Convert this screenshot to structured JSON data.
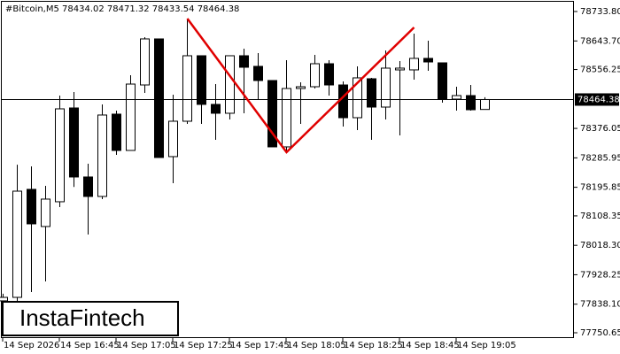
{
  "chart_data": {
    "type": "candlestick",
    "title": "#Bitcoin,M5  78434.02 78471.32 78433.54 78464.38",
    "categories": [
      "14 Sep 2026",
      null,
      null,
      null,
      "14 Sep 16:45",
      null,
      null,
      null,
      "14 Sep 17:05",
      null,
      null,
      null,
      "14 Sep 17:25",
      null,
      null,
      null,
      "14 Sep 17:45",
      null,
      null,
      null,
      "14 Sep 18:05",
      null,
      null,
      null,
      "14 Sep 18:25",
      null,
      null,
      null,
      "14 Sep 18:45",
      null,
      null,
      null,
      "14 Sep 19:05",
      null,
      null
    ],
    "open": [
      77848.3,
      77859,
      78189.5,
      78075.8,
      78151.6,
      78438.6,
      78227.4,
      78167.8,
      78419.7,
      78308.6,
      78509,
      78649.9,
      78289.7,
      78398,
      78598.4,
      78449.5,
      78422.4,
      78598.4,
      78565.9,
      78522.6,
      78319.5,
      78498.2,
      78503.6,
      78574,
      78509,
      78408.8,
      78528,
      78441.3,
      78555.1,
      78555.1,
      78590.3,
      78576.7,
      78465.7,
      78476.5,
      78434.02
    ],
    "high": [
      77870,
      78265,
      78259.9,
      78200.3,
      78476.5,
      78487.4,
      78268,
      78449.5,
      78430.5,
      78538.8,
      78655.3,
      78649.9,
      78479.2,
      78712.1,
      78598.4,
      78511.7,
      78598.4,
      78620.1,
      78606.5,
      78522.6,
      78584.9,
      78517.2,
      78601.1,
      78584.9,
      78519.9,
      78565.9,
      78530.7,
      78614.6,
      78582.2,
      78666.1,
      78644.4,
      78576.7,
      78503.6,
      78509,
      78471.32
    ],
    "low": [
      77843,
      77843,
      77875.4,
      77907.9,
      78135.3,
      78196.8,
      78051.4,
      78159.7,
      78295.1,
      78308.6,
      78484.7,
      78287,
      78208.4,
      78389.9,
      78389.9,
      78341.1,
      78403.4,
      78422.4,
      78463,
      78319.5,
      78303.2,
      78389.9,
      78498.2,
      78476.5,
      78381.8,
      78371,
      78341.1,
      78403.4,
      78354.7,
      78525.3,
      78552.4,
      78454.9,
      78430.5,
      78430.5,
      78433.54
    ],
    "close": [
      77859,
      78184,
      78083.9,
      78159.7,
      78435.9,
      78227.4,
      78167.8,
      78417,
      78308.6,
      78511.7,
      78649.9,
      78287,
      78398,
      78598.4,
      78449.5,
      78422.4,
      78598.4,
      78563.2,
      78522.6,
      78319.5,
      78498.2,
      78503.6,
      78574,
      78509,
      78408.8,
      78530.7,
      78441.3,
      78560.5,
      78560.5,
      78590.3,
      78579.4,
      78465.7,
      78476.5,
      78433.2,
      78464.38
    ],
    "up_color": "#ffffff",
    "down_color": "#000000",
    "ylim": [
      77734.4,
      78769.0
    ],
    "yticks": [
      {
        "value": 78733.8,
        "label": "78733.80"
      },
      {
        "value": 78643.7,
        "label": "78643.70"
      },
      {
        "value": 78556.25,
        "label": "78556.25"
      },
      {
        "value": 78376.05,
        "label": "78376.05"
      },
      {
        "value": 78285.95,
        "label": "78285.95"
      },
      {
        "value": 78195.85,
        "label": "78195.85"
      },
      {
        "value": 78108.35,
        "label": "78108.35"
      },
      {
        "value": 78018.3,
        "label": "78018.30"
      },
      {
        "value": 77928.25,
        "label": "77928.25"
      },
      {
        "value": 77838.1,
        "label": "77838.10"
      },
      {
        "value": 77750.65,
        "label": "77750.65"
      }
    ],
    "current_price": 78464.38,
    "pattern": {
      "color": "#e00000",
      "x": [
        13,
        20,
        29
      ],
      "values": [
        78712.1,
        78303.2,
        78685
      ]
    },
    "watermark": "InstaFintech"
  }
}
